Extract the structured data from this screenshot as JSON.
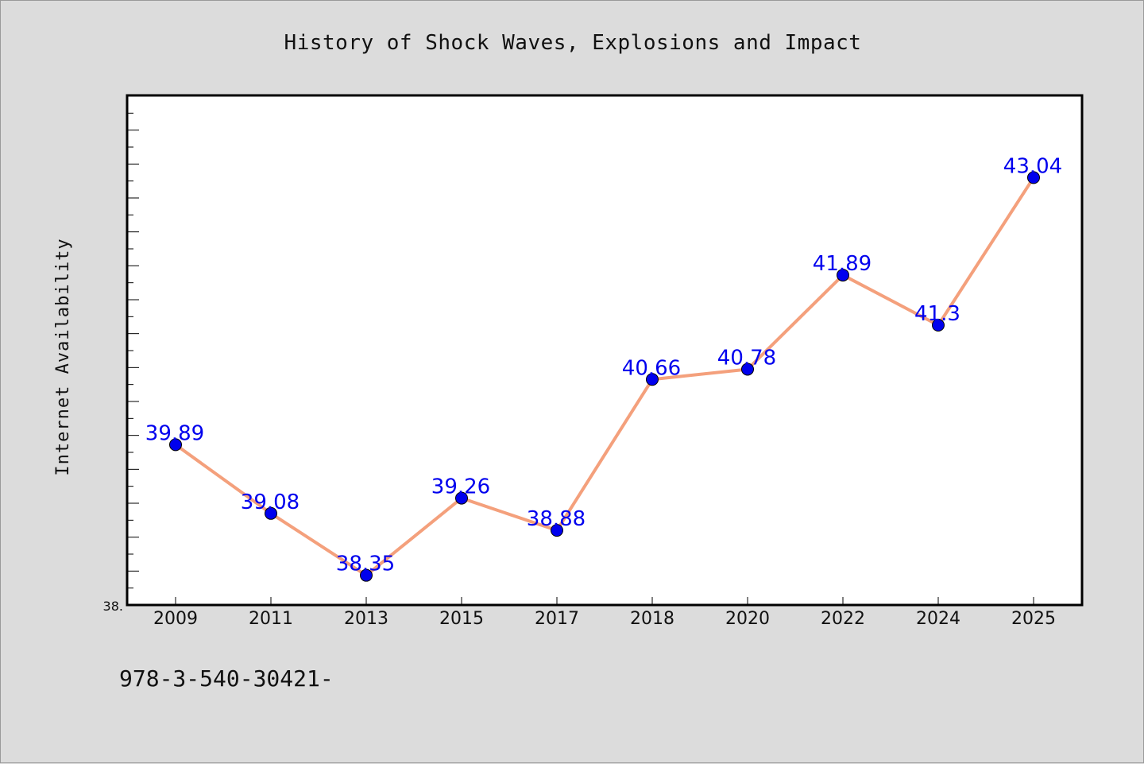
{
  "chart_data": {
    "type": "line",
    "title": "History of Shock Waves, Explosions and Impact",
    "xlabel": "",
    "ylabel": "Internet Availability",
    "categories": [
      "2009",
      "2011",
      "2013",
      "2015",
      "2017",
      "2018",
      "2020",
      "2022",
      "2024",
      "2025"
    ],
    "series": [
      {
        "values": [
          39.89,
          39.08,
          38.35,
          39.26,
          38.88,
          40.66,
          40.78,
          41.89,
          41.3,
          43.04
        ],
        "labels": [
          "39.89",
          "39.08",
          "38.35",
          "39.26",
          "38.88",
          "40.66",
          "40.78",
          "41.89",
          "41.3",
          "43.04"
        ],
        "line_color": "#f4a07c",
        "marker_color": "#0000ee",
        "label_color": "#0000ee"
      }
    ],
    "ylim": [
      38.0,
      44.0
    ],
    "y_tick_labels": [
      "38."
    ],
    "grid": false,
    "legend": "none"
  },
  "footer": {
    "text": "978-3-540-30421-"
  },
  "colors": {
    "background": "#dcdcdc",
    "plot_area": "#ffffff",
    "axis": "#000000"
  }
}
